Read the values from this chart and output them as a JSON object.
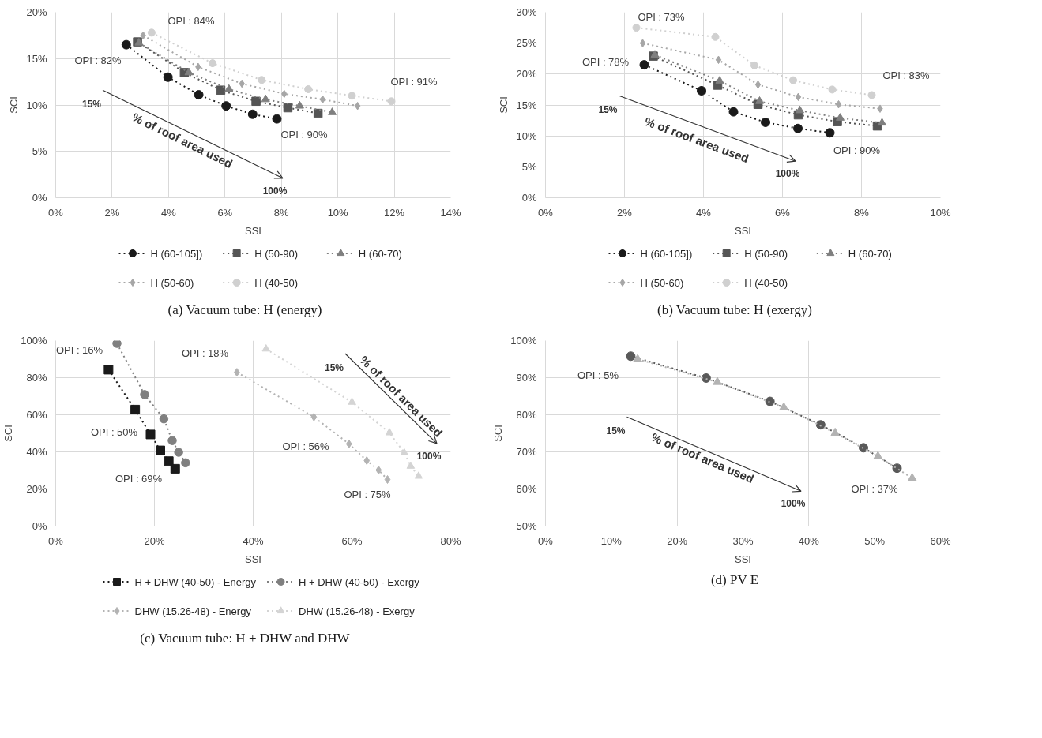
{
  "chart_data": [
    {
      "type": "line",
      "title": "(a) Vacuum tube: H (energy)",
      "xlabel": "SSI",
      "ylabel": "SCI",
      "xlim": [
        0,
        14
      ],
      "ylim": [
        0,
        20
      ],
      "xticks": [
        {
          "value": 0,
          "label": "0%"
        },
        {
          "value": 2,
          "label": "2%"
        },
        {
          "value": 4,
          "label": "4%"
        },
        {
          "value": 6,
          "label": "6%"
        },
        {
          "value": 8,
          "label": "8%"
        },
        {
          "value": 10,
          "label": "10%"
        },
        {
          "value": 12,
          "label": "12%"
        },
        {
          "value": 14,
          "label": "14%"
        }
      ],
      "yticks": [
        {
          "value": 0,
          "label": "0%"
        },
        {
          "value": 5,
          "label": "5%"
        },
        {
          "value": 10,
          "label": "10%"
        },
        {
          "value": 15,
          "label": "15%"
        },
        {
          "value": 20,
          "label": "20%"
        }
      ],
      "grid": true,
      "legend": "bottom",
      "line_style": "dotted",
      "series": [
        {
          "name": "H (60-105])",
          "color": "#1a1a1a",
          "marker": "circle",
          "x": [
            2.5,
            3.98,
            5.07,
            6.04,
            6.98,
            7.84
          ],
          "values": [
            16.5,
            13.0,
            11.1,
            9.9,
            9.0,
            8.5
          ]
        },
        {
          "name": "H (50-90)",
          "color": "#555555",
          "marker": "square",
          "x": [
            2.9,
            4.56,
            5.85,
            7.1,
            8.23,
            9.3
          ],
          "values": [
            16.8,
            13.5,
            11.6,
            10.4,
            9.7,
            9.1
          ]
        },
        {
          "name": "H (60-70)",
          "color": "#7f7f7f",
          "marker": "triangle",
          "x": [
            2.95,
            4.72,
            6.14,
            7.44,
            8.65,
            9.8
          ],
          "values": [
            16.7,
            13.5,
            11.7,
            10.6,
            9.9,
            9.2
          ]
        },
        {
          "name": "H (50-60)",
          "color": "#a6a6a6",
          "marker": "diamond",
          "x": [
            3.1,
            5.05,
            6.6,
            8.1,
            9.46,
            10.7
          ],
          "values": [
            17.5,
            14.1,
            12.3,
            11.2,
            10.6,
            9.9
          ]
        },
        {
          "name": "H (40-50)",
          "color": "#d0d0d0",
          "marker": "circle",
          "x": [
            3.4,
            5.56,
            7.3,
            8.95,
            10.5,
            11.9
          ],
          "values": [
            17.8,
            14.5,
            12.7,
            11.7,
            11.0,
            10.4
          ]
        }
      ],
      "annotations": [
        "OPI : 84%",
        "OPI : 82%",
        "OPI : 91%",
        "OPI : 90%",
        "15%",
        "% of roof area used",
        "100%"
      ]
    },
    {
      "type": "line",
      "title": "(b)  Vacuum tube: H (exergy)",
      "xlabel": "SSI",
      "ylabel": "SCI",
      "xlim": [
        0,
        10
      ],
      "ylim": [
        0,
        30
      ],
      "xticks": [
        {
          "value": 0,
          "label": "0%"
        },
        {
          "value": 2,
          "label": "2%"
        },
        {
          "value": 4,
          "label": "4%"
        },
        {
          "value": 6,
          "label": "6%"
        },
        {
          "value": 8,
          "label": "8%"
        },
        {
          "value": 10,
          "label": "10%"
        }
      ],
      "yticks": [
        {
          "value": 0,
          "label": "0%"
        },
        {
          "value": 5,
          "label": "5%"
        },
        {
          "value": 10,
          "label": "10%"
        },
        {
          "value": 15,
          "label": "15%"
        },
        {
          "value": 20,
          "label": "20%"
        },
        {
          "value": 25,
          "label": "25%"
        },
        {
          "value": 30,
          "label": "30%"
        }
      ],
      "grid": true,
      "legend": "bottom",
      "line_style": "dotted",
      "series": [
        {
          "name": "H (60-105])",
          "color": "#1a1a1a",
          "marker": "circle",
          "x": [
            2.5,
            3.95,
            4.76,
            5.57,
            6.39,
            7.2
          ],
          "values": [
            21.5,
            17.3,
            13.9,
            12.2,
            11.2,
            10.5
          ]
        },
        {
          "name": "H (50-90)",
          "color": "#555555",
          "marker": "square",
          "x": [
            2.73,
            4.36,
            5.38,
            6.4,
            7.39,
            8.4
          ],
          "values": [
            22.9,
            18.2,
            15.1,
            13.4,
            12.3,
            11.6
          ]
        },
        {
          "name": "H (60-70)",
          "color": "#7f7f7f",
          "marker": "triangle",
          "x": [
            2.77,
            4.41,
            5.42,
            6.44,
            7.46,
            8.52
          ],
          "values": [
            23.1,
            18.9,
            15.6,
            14.1,
            12.9,
            12.1
          ]
        },
        {
          "name": "H (50-60)",
          "color": "#a6a6a6",
          "marker": "diamond",
          "x": [
            2.46,
            4.38,
            5.38,
            6.4,
            7.42,
            8.47
          ],
          "values": [
            25.0,
            22.3,
            18.3,
            16.3,
            15.1,
            14.4
          ]
        },
        {
          "name": "H (40-50)",
          "color": "#d0d0d0",
          "marker": "circle",
          "x": [
            2.3,
            4.3,
            5.29,
            6.27,
            7.26,
            8.26
          ],
          "values": [
            27.5,
            26.0,
            21.4,
            19.0,
            17.5,
            16.6
          ]
        }
      ],
      "annotations": [
        "OPI : 73%",
        "OPI : 78%",
        "OPI : 83%",
        "OPI : 90%",
        "15%",
        "% of roof area used",
        "100%"
      ]
    },
    {
      "type": "line",
      "title": "(c)  Vacuum tube: H + DHW and DHW",
      "xlabel": "SSI",
      "ylabel": "SCI",
      "xlim": [
        0,
        80
      ],
      "ylim": [
        0,
        100
      ],
      "xticks": [
        {
          "value": 0,
          "label": "0%"
        },
        {
          "value": 20,
          "label": "20%"
        },
        {
          "value": 40,
          "label": "40%"
        },
        {
          "value": 60,
          "label": "60%"
        },
        {
          "value": 80,
          "label": "80%"
        }
      ],
      "yticks": [
        {
          "value": 0,
          "label": "0%"
        },
        {
          "value": 20,
          "label": "20%"
        },
        {
          "value": 40,
          "label": "40%"
        },
        {
          "value": 60,
          "label": "60%"
        },
        {
          "value": 80,
          "label": "80%"
        },
        {
          "value": 100,
          "label": "100%"
        }
      ],
      "grid": true,
      "legend": "bottom",
      "line_style": "dotted",
      "series": [
        {
          "name": "H + DHW (40-50) - Energy",
          "color": "#1a1a1a",
          "marker": "square",
          "x": [
            10.7,
            16.1,
            19.2,
            21.2,
            22.9,
            24.2
          ],
          "values": [
            84.3,
            62.8,
            49.4,
            40.8,
            35.0,
            30.9
          ]
        },
        {
          "name": "H + DHW (40-50) - Exergy",
          "color": "#808080",
          "marker": "circle",
          "x": [
            12.4,
            18.0,
            21.9,
            23.6,
            24.9,
            26.3
          ],
          "values": [
            98.5,
            70.9,
            57.8,
            46.1,
            39.8,
            34.1
          ]
        },
        {
          "name": "DHW (15.26-48) - Energy",
          "color": "#b3b3b3",
          "marker": "diamond",
          "x": [
            36.7,
            52.3,
            59.4,
            63.0,
            65.4,
            67.2
          ],
          "values": [
            82.9,
            58.8,
            44.3,
            35.3,
            30.2,
            25.1
          ]
        },
        {
          "name": "DHW (15.26-48) - Exergy",
          "color": "#d4d4d4",
          "marker": "triangle",
          "x": [
            42.6,
            60.0,
            67.6,
            70.6,
            71.9,
            73.5
          ],
          "values": [
            95.5,
            66.8,
            50.3,
            39.5,
            32.3,
            26.9
          ]
        }
      ],
      "annotations": [
        "OPI : 16%",
        "OPI : 50%",
        "OPI : 69%",
        "OPI : 18%",
        "OPI : 56%",
        "OPI : 75%",
        "15%",
        "% of roof area used",
        "100%"
      ]
    },
    {
      "type": "line",
      "title": "(d)  PV E",
      "xlabel": "SSI",
      "ylabel": "SCI",
      "xlim": [
        0,
        60
      ],
      "ylim": [
        50,
        100
      ],
      "xticks": [
        {
          "value": 0,
          "label": "0%"
        },
        {
          "value": 10,
          "label": "10%"
        },
        {
          "value": 20,
          "label": "20%"
        },
        {
          "value": 30,
          "label": "30%"
        },
        {
          "value": 40,
          "label": "40%"
        },
        {
          "value": 50,
          "label": "50%"
        },
        {
          "value": 60,
          "label": "60%"
        }
      ],
      "yticks": [
        {
          "value": 50,
          "label": "50%"
        },
        {
          "value": 60,
          "label": "60%"
        },
        {
          "value": 70,
          "label": "70%"
        },
        {
          "value": 80,
          "label": "80%"
        },
        {
          "value": 90,
          "label": "90%"
        },
        {
          "value": 100,
          "label": "100%"
        }
      ],
      "grid": true,
      "line_style": "dotted",
      "series": [
        {
          "color": "#595959",
          "marker": "circle",
          "x": [
            12.95,
            24.4,
            34.1,
            41.8,
            48.3,
            53.4
          ],
          "values": [
            95.8,
            89.9,
            83.6,
            77.3,
            71.1,
            65.6
          ]
        },
        {
          "color": "#b3b3b3",
          "marker": "triangle",
          "x": [
            14.0,
            26.1,
            36.2,
            44.0,
            50.5,
            55.7
          ],
          "values": [
            95.0,
            88.8,
            82.0,
            75.1,
            68.8,
            62.9
          ]
        }
      ],
      "annotations": [
        "OPI : 5%",
        "OPI : 37%",
        "15%",
        "% of roof area used",
        "100%"
      ]
    }
  ]
}
